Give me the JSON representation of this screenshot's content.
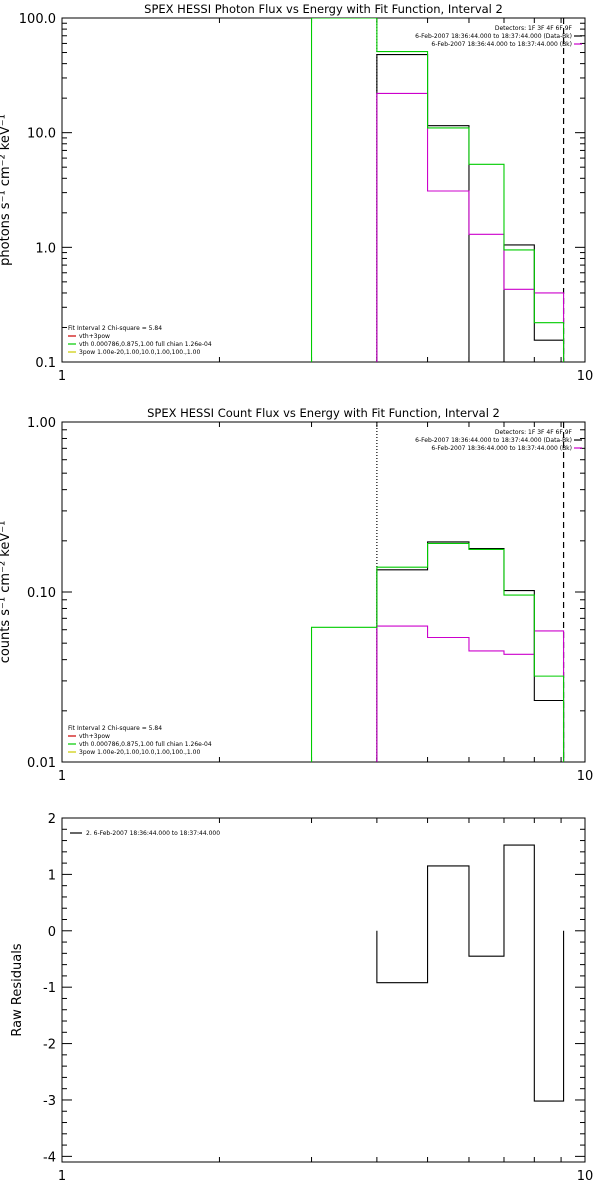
{
  "chart_data": [
    {
      "type": "line",
      "title": "SPEX HESSI Photon Flux vs Energy with Fit Function, Interval 2",
      "ylabel": "photons s⁻¹ cm⁻² keV⁻¹",
      "xlabel": "",
      "xscale": "log",
      "yscale": "log",
      "xlim": [
        1,
        10
      ],
      "ylim": [
        0.1,
        100
      ],
      "xticks": [
        {
          "v": 1,
          "label": "1"
        },
        {
          "v": 10,
          "label": "10"
        }
      ],
      "yticks": [
        {
          "v": 0.1,
          "label": "0.1"
        },
        {
          "v": 1,
          "label": "1.0"
        },
        {
          "v": 10,
          "label": "10.0"
        },
        {
          "v": 100,
          "label": "100.0"
        }
      ],
      "top_legend": [
        {
          "text": "Detectors: 1F 3F 4F 6F 9F",
          "color": ""
        },
        {
          "text": "6-Feb-2007 18:36:44.000 to 18:37:44.000 (Data-Bk)",
          "color": "#000000"
        },
        {
          "text": "6-Feb-2007 18:36:44.000 to 18:37:44.000 (Bk)",
          "color": "#cc00cc"
        }
      ],
      "fit_legend": [
        {
          "text": "Fit Interval 2   Chi-square = 5.84",
          "color": ""
        },
        {
          "text": "vth+3pow",
          "color": "#cc0000"
        },
        {
          "text": "vth 0.000786,0.875,1.00  full chian 1.26e-04",
          "color": "#00cc00"
        },
        {
          "text": "3pow 1.00e-20,1.00,10.0,1.00,100.,1.00",
          "color": "#cccc00"
        }
      ],
      "vlines": [
        {
          "x": 4.0,
          "style": "dotted",
          "color": "#000000"
        },
        {
          "x": 9.1,
          "style": "dashed",
          "color": "#000000"
        }
      ],
      "series": [
        {
          "name": "Data-Bk",
          "color": "#000000",
          "edges": [
            4.0,
            5.0,
            6.0,
            7.0,
            8.0,
            9.1
          ],
          "values": [
            48,
            11.5,
            null,
            1.05,
            0.155
          ]
        },
        {
          "name": "Bk",
          "color": "#cc00cc",
          "edges": [
            4.0,
            5.0,
            6.0,
            7.0,
            8.0,
            9.1
          ],
          "values": [
            22,
            3.1,
            1.3,
            0.43,
            0.4
          ]
        },
        {
          "name": "vth",
          "color": "#00cc00",
          "edges": [
            3.0,
            4.0,
            5.0,
            6.0,
            7.0,
            8.0,
            9.1
          ],
          "values": [
            100,
            51,
            11.0,
            5.3,
            0.95,
            0.22
          ]
        }
      ]
    },
    {
      "type": "line",
      "title": "SPEX HESSI Count Flux vs Energy with Fit Function, Interval 2",
      "ylabel": "counts s⁻¹ cm⁻² keV⁻¹",
      "xlabel": "",
      "xscale": "log",
      "yscale": "log",
      "xlim": [
        1,
        10
      ],
      "ylim": [
        0.01,
        1.0
      ],
      "xticks": [
        {
          "v": 1,
          "label": "1"
        },
        {
          "v": 10,
          "label": "10"
        }
      ],
      "yticks": [
        {
          "v": 0.01,
          "label": "0.01"
        },
        {
          "v": 0.1,
          "label": "0.10"
        },
        {
          "v": 1,
          "label": "1.00"
        }
      ],
      "top_legend": [
        {
          "text": "Detectors: 1F 3F 4F 6F 9F",
          "color": ""
        },
        {
          "text": "6-Feb-2007 18:36:44.000 to 18:37:44.000 (Data-Bk)",
          "color": "#000000"
        },
        {
          "text": "6-Feb-2007 18:36:44.000 to 18:37:44.000 (Bk)",
          "color": "#cc00cc"
        }
      ],
      "fit_legend": [
        {
          "text": "Fit Interval 2   Chi-square = 5.84",
          "color": ""
        },
        {
          "text": "vth+3pow",
          "color": "#cc0000"
        },
        {
          "text": "vth 0.000786,0.875,1.00  full chian 1.26e-04",
          "color": "#00cc00"
        },
        {
          "text": "3pow 1.00e-20,1.00,10.0,1.00,100.,1.00",
          "color": "#cccc00"
        }
      ],
      "vlines": [
        {
          "x": 4.0,
          "style": "dotted",
          "color": "#000000"
        },
        {
          "x": 9.1,
          "style": "dashed",
          "color": "#000000"
        }
      ],
      "series": [
        {
          "name": "Data-Bk",
          "color": "#000000",
          "edges": [
            4.0,
            5.0,
            6.0,
            7.0,
            8.0,
            9.1
          ],
          "values": [
            0.135,
            0.197,
            0.18,
            0.102,
            0.023
          ]
        },
        {
          "name": "Bk",
          "color": "#cc00cc",
          "edges": [
            4.0,
            5.0,
            6.0,
            7.0,
            8.0,
            9.1
          ],
          "values": [
            0.063,
            0.054,
            0.045,
            0.043,
            0.059
          ]
        },
        {
          "name": "vth",
          "color": "#00cc00",
          "edges": [
            3.0,
            4.0,
            5.0,
            6.0,
            7.0,
            8.0,
            9.1,
            10.0
          ],
          "values": [
            0.062,
            0.14,
            0.193,
            0.178,
            0.096,
            0.032,
            0.0098
          ]
        }
      ]
    },
    {
      "type": "line",
      "title": "",
      "ylabel": "Raw Residuals",
      "xlabel": "",
      "xscale": "log",
      "yscale": "linear",
      "xlim": [
        1,
        10
      ],
      "ylim": [
        -4.1,
        2.0
      ],
      "xticks": [
        {
          "v": 1,
          "label": "1"
        },
        {
          "v": 10,
          "label": "10"
        }
      ],
      "yticks": [
        {
          "v": -4,
          "label": "-4"
        },
        {
          "v": -3,
          "label": "-3"
        },
        {
          "v": -2,
          "label": "-2"
        },
        {
          "v": -1,
          "label": "-1"
        },
        {
          "v": 0,
          "label": "0"
        },
        {
          "v": 1,
          "label": "1"
        },
        {
          "v": 2,
          "label": "2"
        }
      ],
      "top_legend": [],
      "fit_legend": [],
      "resid_legend": {
        "text": "2.  6-Feb-2007 18:36:44.000 to 18:37:44.000",
        "color": "#000000"
      },
      "vlines": [],
      "series": [
        {
          "name": "2.  6-Feb-2007 18:36:44.000 to 18:37:44.000",
          "color": "#000000",
          "edges": [
            4.0,
            5.0,
            6.0,
            7.0,
            8.0,
            9.1
          ],
          "values": [
            -0.92,
            1.15,
            -0.45,
            1.52,
            -3.02
          ]
        }
      ]
    }
  ]
}
